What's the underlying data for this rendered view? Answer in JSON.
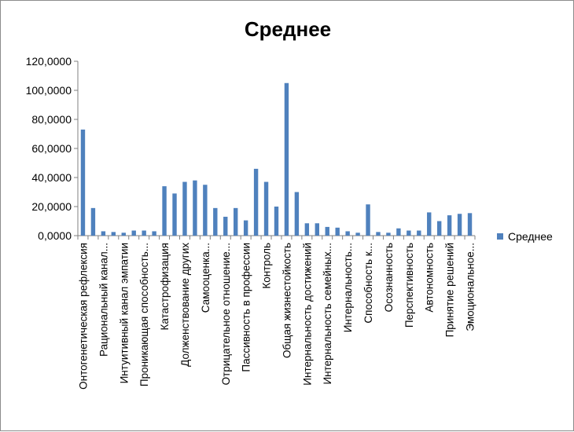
{
  "chart_data": {
    "type": "bar",
    "title": "Среднее",
    "series": [
      {
        "name": "Среднее",
        "color": "#4F81BD",
        "values": [
          73,
          19,
          3,
          2.5,
          2,
          3.5,
          3.5,
          3,
          34,
          29,
          37,
          38,
          35,
          19,
          13,
          19,
          10.5,
          46,
          37,
          20,
          105,
          30,
          8.5,
          8.5,
          6,
          5.5,
          3,
          2,
          21.5,
          2.5,
          2,
          5,
          3.5,
          3.5,
          16,
          10,
          14,
          15,
          15.5
        ]
      }
    ],
    "categories": [
      "Онтогенетическая рефлексия",
      "",
      "Рациональный канал...",
      "",
      "Интуитивный канал эмпатии",
      "",
      "Проникающая способность...",
      "",
      "Катастрофизация",
      "",
      "Долженствование других",
      "",
      "Самооценка...",
      "",
      "Отрицательное отношение...",
      "",
      "Пассивность в профессии",
      "",
      "Контроль",
      "",
      "Общая жизнестойкость",
      "",
      "Интернальность достижений",
      "",
      "Интернальность семейных...",
      "",
      "Интернальность...",
      "",
      "Способность к...",
      "",
      "Осознанность",
      "",
      "Перспективность",
      "",
      "Автономность",
      "",
      "Принятие решений",
      "",
      "Эмоциональное..."
    ],
    "y_tick_labels": [
      "0,0000",
      "20,0000",
      "40,0000",
      "60,0000",
      "80,0000",
      "100,0000",
      "120,0000"
    ],
    "ylim": [
      0,
      120
    ],
    "legend_position": "right",
    "grid": false
  }
}
